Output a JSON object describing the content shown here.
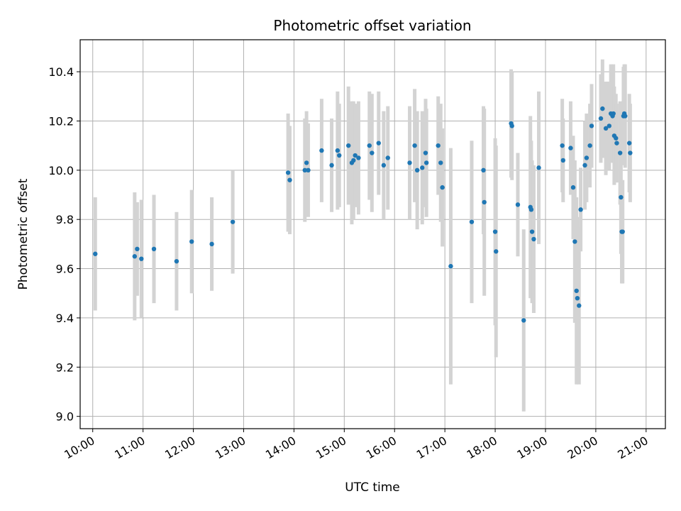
{
  "chart_data": {
    "type": "scatter",
    "title": "Photometric offset variation",
    "xlabel": "UTC time",
    "ylabel": "Photometric offset",
    "xlim": [
      "09:45",
      "21:23"
    ],
    "ylim": [
      8.95,
      10.53
    ],
    "x_ticks": [
      "10:00",
      "11:00",
      "12:00",
      "13:00",
      "14:00",
      "15:00",
      "16:00",
      "17:00",
      "18:00",
      "19:00",
      "20:00",
      "21:00"
    ],
    "y_ticks": [
      "9.0",
      "9.2",
      "9.4",
      "9.6",
      "9.8",
      "10.0",
      "10.2",
      "10.4"
    ],
    "grid": true,
    "colors": {
      "point": "#1f77b4",
      "errorbar": "#d3d3d3",
      "grid": "#b0b0b0"
    },
    "series": [
      {
        "x": [
          "10:03",
          "10:50",
          "10:53",
          "10:58",
          "11:13",
          "11:40",
          "11:58",
          "12:22",
          "12:47",
          "13:53",
          "13:55",
          "14:13",
          "14:15",
          "14:17",
          "14:33",
          "14:45",
          "14:52",
          "14:54",
          "15:05",
          "15:09",
          "15:11",
          "15:13",
          "15:17",
          "15:30",
          "15:33",
          "15:41",
          "15:47",
          "15:52",
          "16:18",
          "16:24",
          "16:27",
          "16:33",
          "16:37",
          "16:38",
          "16:52",
          "16:55",
          "16:57",
          "17:07",
          "17:32",
          "17:46",
          "17:47",
          "18:00",
          "18:01",
          "18:19",
          "18:20",
          "18:27",
          "18:34",
          "18:42",
          "18:43",
          "18:44",
          "18:46",
          "18:52",
          "19:20",
          "19:21",
          "19:30",
          "19:33",
          "19:35",
          "19:37",
          "19:38",
          "19:40",
          "19:42",
          "19:47",
          "19:49",
          "19:53",
          "19:55",
          "20:06",
          "20:08",
          "20:12",
          "20:16",
          "20:18",
          "20:20",
          "20:21",
          "20:22",
          "20:24",
          "20:25",
          "20:29",
          "20:30",
          "20:31",
          "20:32",
          "20:33",
          "20:34",
          "20:35",
          "20:40",
          "20:41"
        ],
        "y": [
          9.66,
          9.65,
          9.68,
          9.64,
          9.68,
          9.63,
          9.71,
          9.7,
          9.79,
          9.99,
          9.96,
          10.0,
          10.03,
          10.0,
          10.08,
          10.02,
          10.08,
          10.06,
          10.1,
          10.03,
          10.04,
          10.06,
          10.05,
          10.1,
          10.07,
          10.11,
          10.02,
          10.05,
          10.03,
          10.1,
          10.0,
          10.01,
          10.07,
          10.03,
          10.1,
          10.03,
          9.93,
          9.61,
          9.79,
          10.0,
          9.87,
          9.75,
          9.67,
          10.19,
          10.18,
          9.86,
          9.39,
          9.85,
          9.84,
          9.75,
          9.72,
          10.01,
          10.1,
          10.04,
          10.09,
          9.93,
          9.71,
          9.51,
          9.48,
          9.45,
          9.84,
          10.02,
          10.05,
          10.1,
          10.18,
          10.21,
          10.25,
          10.17,
          10.18,
          10.23,
          10.22,
          10.23,
          10.14,
          10.13,
          10.11,
          10.07,
          9.89,
          9.75,
          9.75,
          10.22,
          10.23,
          10.22,
          10.11,
          10.07
        ],
        "err": [
          0.23,
          0.26,
          0.19,
          0.24,
          0.22,
          0.2,
          0.21,
          0.19,
          0.21,
          0.24,
          0.22,
          0.21,
          0.21,
          0.19,
          0.21,
          0.19,
          0.24,
          0.21,
          0.24,
          0.25,
          0.24,
          0.21,
          0.23,
          0.22,
          0.24,
          0.21,
          0.22,
          0.21,
          0.23,
          0.23,
          0.24,
          0.23,
          0.22,
          0.22,
          0.2,
          0.24,
          0.24,
          0.48,
          0.33,
          0.26,
          0.38,
          0.38,
          0.43,
          0.22,
          0.22,
          0.21,
          0.37,
          0.37,
          0.28,
          0.29,
          0.3,
          0.31,
          0.19,
          0.17,
          0.19,
          0.21,
          0.33,
          0.38,
          0.33,
          0.32,
          0.17,
          0.18,
          0.18,
          0.17,
          0.17,
          0.18,
          0.2,
          0.19,
          0.18,
          0.2,
          0.18,
          0.2,
          0.2,
          0.18,
          0.16,
          0.21,
          0.23,
          0.21,
          0.21,
          0.2,
          0.2,
          0.21,
          0.2,
          0.2
        ]
      }
    ]
  }
}
